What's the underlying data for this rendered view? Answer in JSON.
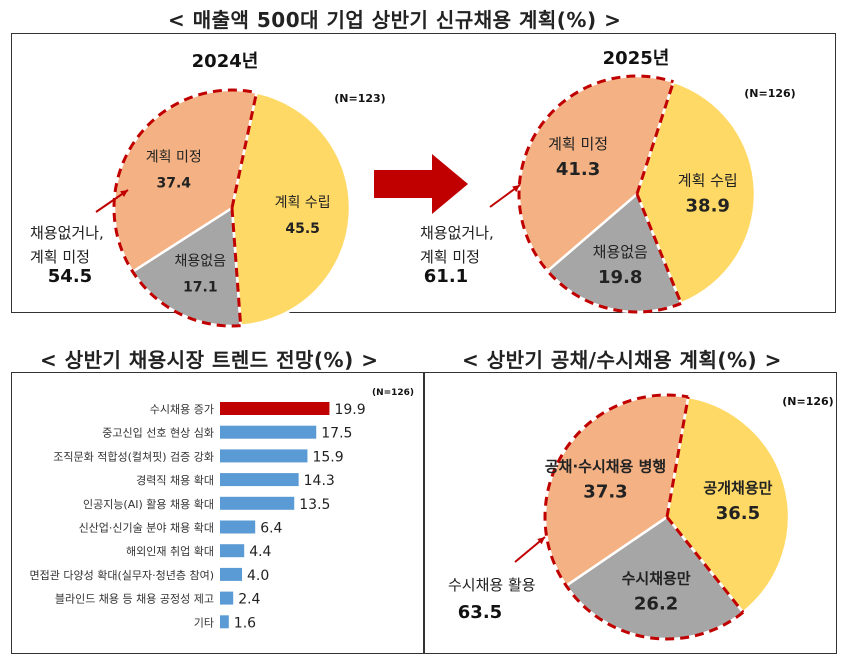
{
  "title_top": "< 매출액 500대 기업 상반기 신규채용 계획(%) >",
  "title_bottom_left": "< 상반기 채용시장 트렌드 전망(%) >",
  "title_bottom_right": "< 상반기 공채/수시채용 계획(%) >",
  "colors": {
    "yellow": "#FFD966",
    "salmon": "#F4B183",
    "gray": "#A6A6A6",
    "blue": "#5B9BD5",
    "red": "#C00000",
    "dash": "#C00000"
  },
  "chart_data": [
    {
      "type": "pie",
      "title": "2024년",
      "n_label": "(N=123)",
      "slices": [
        {
          "label": "계획 수립",
          "value": 45.5,
          "color": "#FFD966"
        },
        {
          "label": "채용없음",
          "value": 17.1,
          "color": "#A6A6A6"
        },
        {
          "label": "계획 미정",
          "value": 37.4,
          "color": "#F4B183"
        }
      ],
      "annotation": {
        "label_lines": [
          "채용없거나,",
          "계획 미정"
        ],
        "value": "54.5"
      }
    },
    {
      "type": "pie",
      "title": "2025년",
      "n_label": "(N=126)",
      "slices": [
        {
          "label": "계획 수립",
          "value": 38.9,
          "color": "#FFD966"
        },
        {
          "label": "채용없음",
          "value": 19.8,
          "color": "#A6A6A6"
        },
        {
          "label": "계획 미정",
          "value": 41.3,
          "color": "#F4B183"
        }
      ],
      "annotation": {
        "label_lines": [
          "채용없거나,",
          "계획 미정"
        ],
        "value": "61.1"
      }
    },
    {
      "type": "bar",
      "orientation": "horizontal",
      "n_label": "(N=126)",
      "categories": [
        "수시채용 증가",
        "중고신입 선호 현상 심화",
        "조직문화 적합성(컬쳐핏) 검증 강화",
        "경력직 채용 확대",
        "인공지능(AI) 활용 채용 확대",
        "신산업·신기술 분야 채용 확대",
        "해외인재 취업 확대",
        "면접관 다양성 확대(실무자·청년층 참여)",
        "블라인드 채용 등 채용 공정성 제고",
        "기타"
      ],
      "values": [
        19.9,
        17.5,
        15.9,
        14.3,
        13.5,
        6.4,
        4.4,
        4.0,
        2.4,
        1.6
      ],
      "value_labels": [
        "19.9",
        "17.5",
        "15.9",
        "14.3",
        "13.5",
        "6.4",
        "4.4",
        "4.0",
        "2.4",
        "1.6"
      ],
      "highlight_index": 0
    },
    {
      "type": "pie",
      "n_label": "(N=126)",
      "slices": [
        {
          "label": "공개채용만",
          "value": 36.5,
          "color": "#FFD966"
        },
        {
          "label": "수시채용만",
          "value": 26.2,
          "color": "#A6A6A6"
        },
        {
          "label": "공채·수시채용 병행",
          "value": 37.3,
          "color": "#F4B183"
        }
      ],
      "annotation": {
        "label_lines": [
          "수시채용 활용"
        ],
        "value": "63.5"
      }
    }
  ]
}
